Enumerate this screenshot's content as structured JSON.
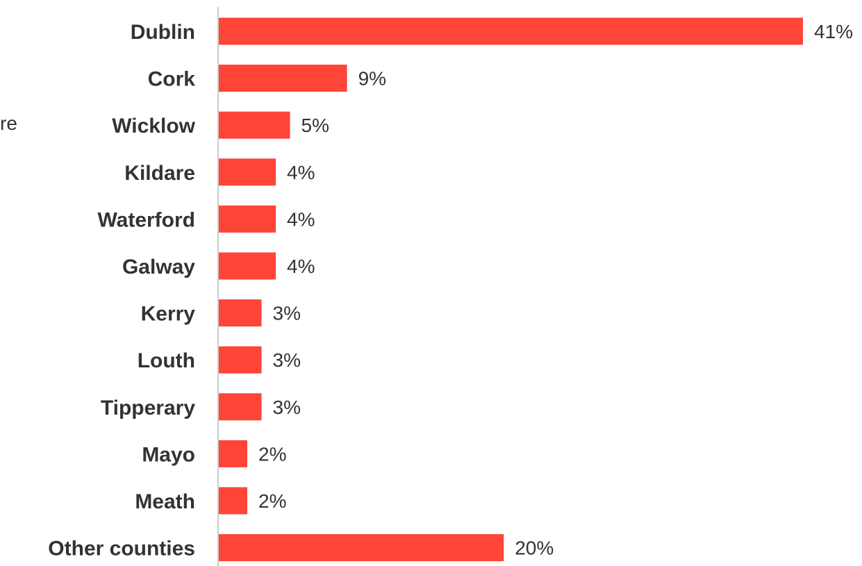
{
  "chart_data": {
    "type": "bar",
    "orientation": "horizontal",
    "categories": [
      "Dublin",
      "Cork",
      "Wicklow",
      "Kildare",
      "Waterford",
      "Galway",
      "Kerry",
      "Louth",
      "Tipperary",
      "Mayo",
      "Meath",
      "Other counties"
    ],
    "values": [
      41,
      9,
      5,
      4,
      4,
      4,
      3,
      3,
      3,
      2,
      2,
      20
    ],
    "value_labels": [
      "41%",
      "9%",
      "5%",
      "4%",
      "4%",
      "4%",
      "3%",
      "3%",
      "3%",
      "2%",
      "2%",
      "20%"
    ],
    "unit": "%",
    "bar_color": "#ff4438",
    "axis_color": "#cccccc",
    "title": "",
    "xlabel": "",
    "ylabel": "",
    "grid": false,
    "legend": "none"
  },
  "stray_text": "re"
}
